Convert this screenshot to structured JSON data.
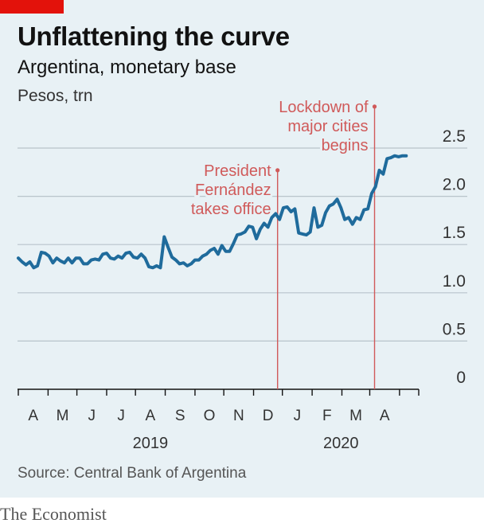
{
  "header": {
    "title": "Unflattening the curve",
    "subtitle": "Argentina, monetary base",
    "units": "Pesos, trn"
  },
  "footer": {
    "source": "Source: Central Bank of Argentina",
    "brand": "The Economist"
  },
  "colors": {
    "line": "#1f6b9c",
    "annotation": "#d05a5a",
    "grid": "#b8c4cb",
    "background": "#e8f1f5",
    "accent": "#e3120b"
  },
  "chart_data": {
    "type": "line",
    "title": "Unflattening the curve",
    "subtitle": "Argentina, monetary base",
    "ylabel": "Pesos, trn",
    "ylim": [
      0,
      2.5
    ],
    "yticks": [
      "0",
      "0.5",
      "1.0",
      "1.5",
      "2.0",
      "2.5"
    ],
    "y_axis_side": "right",
    "grid": true,
    "xlim": [
      "2019-03-15",
      "2020-05-05"
    ],
    "month_ticks": [
      "2019-03-15",
      "2019-04-15",
      "2019-05-15",
      "2019-06-15",
      "2019-07-15",
      "2019-08-15",
      "2019-09-15",
      "2019-10-15",
      "2019-11-15",
      "2019-12-15",
      "2020-01-15",
      "2020-02-15",
      "2020-03-15",
      "2020-04-15",
      "2020-05-05"
    ],
    "month_labels": [
      "A",
      "M",
      "J",
      "J",
      "A",
      "S",
      "O",
      "N",
      "D",
      "J",
      "F",
      "M",
      "A"
    ],
    "year_labels": [
      "2019",
      "2020"
    ],
    "series": [
      {
        "points": [
          [
            "2019-03-15",
            1.36
          ],
          [
            "2019-03-19",
            1.32
          ],
          [
            "2019-03-23",
            1.29
          ],
          [
            "2019-03-27",
            1.32
          ],
          [
            "2019-03-31",
            1.26
          ],
          [
            "2019-04-04",
            1.28
          ],
          [
            "2019-04-08",
            1.42
          ],
          [
            "2019-04-12",
            1.41
          ],
          [
            "2019-04-16",
            1.38
          ],
          [
            "2019-04-20",
            1.31
          ],
          [
            "2019-04-24",
            1.36
          ],
          [
            "2019-04-28",
            1.33
          ],
          [
            "2019-05-02",
            1.31
          ],
          [
            "2019-05-06",
            1.36
          ],
          [
            "2019-05-10",
            1.31
          ],
          [
            "2019-05-14",
            1.36
          ],
          [
            "2019-05-18",
            1.36
          ],
          [
            "2019-05-22",
            1.3
          ],
          [
            "2019-05-26",
            1.3
          ],
          [
            "2019-05-30",
            1.34
          ],
          [
            "2019-06-03",
            1.35
          ],
          [
            "2019-06-07",
            1.34
          ],
          [
            "2019-06-11",
            1.4
          ],
          [
            "2019-06-15",
            1.41
          ],
          [
            "2019-06-19",
            1.36
          ],
          [
            "2019-06-23",
            1.35
          ],
          [
            "2019-06-27",
            1.38
          ],
          [
            "2019-07-01",
            1.36
          ],
          [
            "2019-07-05",
            1.41
          ],
          [
            "2019-07-09",
            1.42
          ],
          [
            "2019-07-13",
            1.37
          ],
          [
            "2019-07-17",
            1.36
          ],
          [
            "2019-07-21",
            1.4
          ],
          [
            "2019-07-25",
            1.36
          ],
          [
            "2019-07-29",
            1.27
          ],
          [
            "2019-08-02",
            1.26
          ],
          [
            "2019-08-06",
            1.28
          ],
          [
            "2019-08-10",
            1.26
          ],
          [
            "2019-08-14",
            1.58
          ],
          [
            "2019-08-18",
            1.47
          ],
          [
            "2019-08-22",
            1.37
          ],
          [
            "2019-08-26",
            1.34
          ],
          [
            "2019-08-30",
            1.3
          ],
          [
            "2019-09-03",
            1.31
          ],
          [
            "2019-09-07",
            1.28
          ],
          [
            "2019-09-11",
            1.3
          ],
          [
            "2019-09-15",
            1.34
          ],
          [
            "2019-09-19",
            1.34
          ],
          [
            "2019-09-23",
            1.38
          ],
          [
            "2019-09-27",
            1.4
          ],
          [
            "2019-10-01",
            1.44
          ],
          [
            "2019-10-05",
            1.46
          ],
          [
            "2019-10-09",
            1.4
          ],
          [
            "2019-10-13",
            1.49
          ],
          [
            "2019-10-17",
            1.43
          ],
          [
            "2019-10-21",
            1.43
          ],
          [
            "2019-10-25",
            1.51
          ],
          [
            "2019-10-29",
            1.6
          ],
          [
            "2019-11-02",
            1.61
          ],
          [
            "2019-11-06",
            1.63
          ],
          [
            "2019-11-10",
            1.69
          ],
          [
            "2019-11-14",
            1.68
          ],
          [
            "2019-11-18",
            1.56
          ],
          [
            "2019-11-22",
            1.66
          ],
          [
            "2019-11-26",
            1.72
          ],
          [
            "2019-11-30",
            1.68
          ],
          [
            "2019-12-04",
            1.78
          ],
          [
            "2019-12-08",
            1.82
          ],
          [
            "2019-12-12",
            1.76
          ],
          [
            "2019-12-16",
            1.88
          ],
          [
            "2019-12-20",
            1.89
          ],
          [
            "2019-12-24",
            1.84
          ],
          [
            "2019-12-28",
            1.87
          ],
          [
            "2020-01-01",
            1.62
          ],
          [
            "2020-01-05",
            1.61
          ],
          [
            "2020-01-09",
            1.6
          ],
          [
            "2020-01-13",
            1.63
          ],
          [
            "2020-01-17",
            1.88
          ],
          [
            "2020-01-21",
            1.68
          ],
          [
            "2020-01-25",
            1.7
          ],
          [
            "2020-01-29",
            1.83
          ],
          [
            "2020-02-02",
            1.9
          ],
          [
            "2020-02-06",
            1.92
          ],
          [
            "2020-02-10",
            1.97
          ],
          [
            "2020-02-14",
            1.88
          ],
          [
            "2020-02-18",
            1.76
          ],
          [
            "2020-02-22",
            1.78
          ],
          [
            "2020-02-26",
            1.71
          ],
          [
            "2020-03-01",
            1.78
          ],
          [
            "2020-03-05",
            1.76
          ],
          [
            "2020-03-09",
            1.86
          ],
          [
            "2020-03-13",
            1.87
          ],
          [
            "2020-03-17",
            2.03
          ],
          [
            "2020-03-21",
            2.1
          ],
          [
            "2020-03-25",
            2.27
          ],
          [
            "2020-03-29",
            2.23
          ],
          [
            "2020-04-02",
            2.39
          ],
          [
            "2020-04-06",
            2.4
          ],
          [
            "2020-04-10",
            2.42
          ],
          [
            "2020-04-14",
            2.41
          ],
          [
            "2020-04-18",
            2.42
          ],
          [
            "2020-04-22",
            2.42
          ]
        ]
      }
    ],
    "annotations": [
      {
        "date": "2019-12-10",
        "value": 2.27,
        "lines": [
          "President",
          "Fernández",
          "takes office"
        ]
      },
      {
        "date": "2020-03-20",
        "value": 2.93,
        "lines": [
          "Lockdown of",
          "major cities",
          "begins"
        ]
      }
    ]
  }
}
